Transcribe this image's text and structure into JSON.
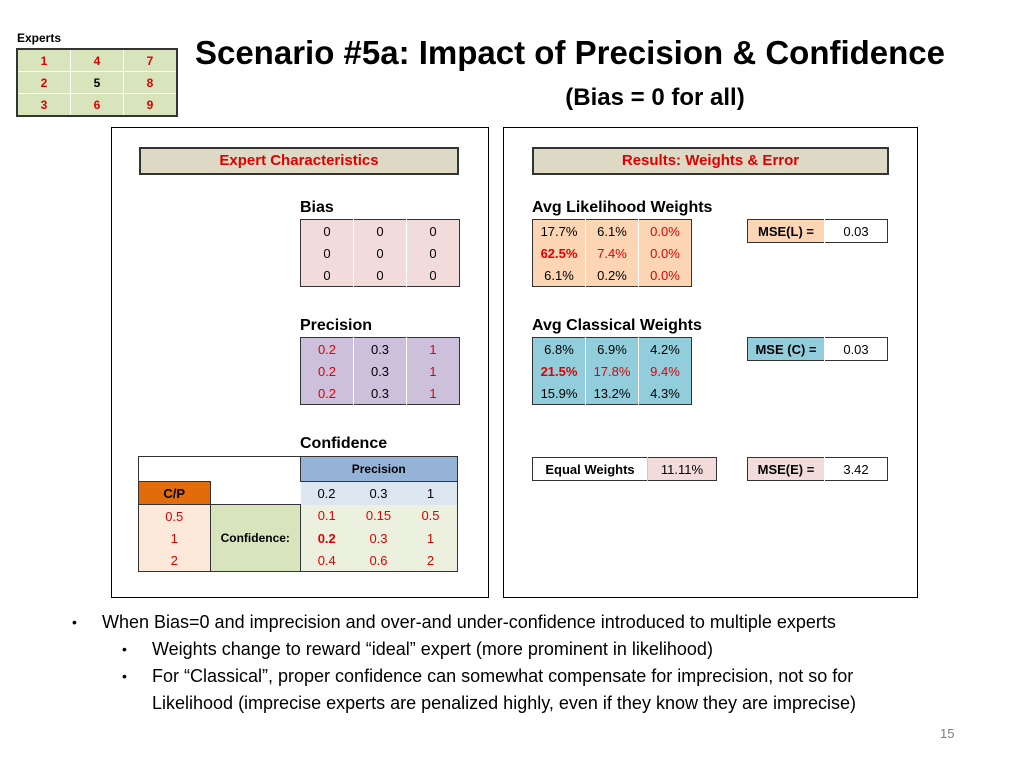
{
  "experts": {
    "label": "Experts",
    "grid": [
      [
        "1",
        "4",
        "7"
      ],
      [
        "2",
        "5",
        "8"
      ],
      [
        "3",
        "6",
        "9"
      ]
    ]
  },
  "title": "Scenario #5a: Impact of Precision & Confidence",
  "subtitle": "(Bias = 0 for all)",
  "left_panel": {
    "header": "Expert Characteristics",
    "bias": {
      "label": "Bias",
      "rows": [
        [
          "0",
          "0",
          "0"
        ],
        [
          "0",
          "0",
          "0"
        ],
        [
          "0",
          "0",
          "0"
        ]
      ]
    },
    "precision": {
      "label": "Precision",
      "rows": [
        [
          "0.2",
          "0.3",
          "1"
        ],
        [
          "0.2",
          "0.3",
          "1"
        ],
        [
          "0.2",
          "0.3",
          "1"
        ]
      ]
    },
    "confidence": {
      "label": "Confidence",
      "precision_header": "Precision",
      "cp_label": "C/P",
      "precision_values": [
        "0.2",
        "0.3",
        "1"
      ],
      "conf_label": "Confidence:",
      "conf_values": [
        "0.5",
        "1",
        "2"
      ],
      "rows": [
        [
          "0.1",
          "0.15",
          "0.5"
        ],
        [
          "0.2",
          "0.3",
          "1"
        ],
        [
          "0.4",
          "0.6",
          "2"
        ]
      ]
    }
  },
  "right_panel": {
    "header": "Results: Weights & Error",
    "likelihood": {
      "label": "Avg Likelihood Weights",
      "rows": [
        [
          "17.7%",
          "6.1%",
          "0.0%"
        ],
        [
          "62.5%",
          "7.4%",
          "0.0%"
        ],
        [
          "6.1%",
          "0.2%",
          "0.0%"
        ]
      ],
      "mse_label": "MSE(L) =",
      "mse_value": "0.03"
    },
    "classical": {
      "label": "Avg Classical Weights",
      "rows": [
        [
          "6.8%",
          "6.9%",
          "4.2%"
        ],
        [
          "21.5%",
          "17.8%",
          "9.4%"
        ],
        [
          "15.9%",
          "13.2%",
          "4.3%"
        ]
      ],
      "mse_label": "MSE (C) =",
      "mse_value": "0.03"
    },
    "equal": {
      "label": "Equal Weights",
      "value": "11.11%",
      "mse_label": "MSE(E) =",
      "mse_value": "3.42"
    }
  },
  "bullets": {
    "main": "When Bias=0 and imprecision and over-and under-confidence introduced to multiple experts",
    "sub1": "Weights change to reward “ideal” expert (more prominent in likelihood)",
    "sub2a": "For “Classical”, proper confidence can somewhat compensate for imprecision, not so for",
    "sub2b": "Likelihood (imprecise experts are penalized highly, even if they know they are imprecise)"
  },
  "page_number": "15"
}
